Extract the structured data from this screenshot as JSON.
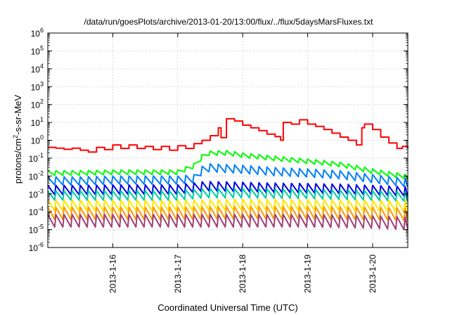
{
  "chart_data": {
    "type": "line",
    "title": "/data/run/goesPlots/archive/2013-01-20/13:00/flux/../flux/5daysMarsFluxes.txt",
    "xlabel": "Coordinated Universal Time (UTC)",
    "ylabel": {
      "base": "protons/cm",
      "sup": "2",
      "rest": "-s-sr-MeV"
    },
    "yscale": "log",
    "ylim": [
      1e-06,
      1000000.0
    ],
    "yticks": [
      {
        "value": 1e-06,
        "exp": "-6"
      },
      {
        "value": 1e-05,
        "exp": "-5"
      },
      {
        "value": 0.0001,
        "exp": "-4"
      },
      {
        "value": 0.001,
        "exp": "-3"
      },
      {
        "value": 0.01,
        "exp": "-2"
      },
      {
        "value": 0.1,
        "exp": "-1"
      },
      {
        "value": 1,
        "exp": "0"
      },
      {
        "value": 10,
        "exp": "1"
      },
      {
        "value": 100,
        "exp": "2"
      },
      {
        "value": 1000,
        "exp": "3"
      },
      {
        "value": 10000,
        "exp": "4"
      },
      {
        "value": 100000,
        "exp": "5"
      },
      {
        "value": 1000000,
        "exp": "6"
      }
    ],
    "ytick_base": "10",
    "xlim": [
      "2013-01-15 00:00",
      "2013-01-20 13:00"
    ],
    "xticks": [
      {
        "value": "2013-01-16 00:00",
        "label": "2013-1-16"
      },
      {
        "value": "2013-01-17 00:00",
        "label": "2013-1-17"
      },
      {
        "value": "2013-01-18 00:00",
        "label": "2013-1-18"
      },
      {
        "value": "2013-01-19 00:00",
        "label": "2013-1-19"
      },
      {
        "value": "2013-01-20 00:00",
        "label": "2013-1-20"
      }
    ],
    "grid": "dotted",
    "legend": "none",
    "series": [
      {
        "color": "#ff0000",
        "values": [
          [
            "2013-01-15 00:00",
            0.4
          ],
          [
            "2013-01-15 03:00",
            0.36
          ],
          [
            "2013-01-15 06:00",
            0.31
          ],
          [
            "2013-01-15 09:00",
            0.36
          ],
          [
            "2013-01-15 12:00",
            0.28
          ],
          [
            "2013-01-15 15:00",
            0.22
          ],
          [
            "2013-01-15 18:00",
            0.4
          ],
          [
            "2013-01-15 21:00",
            0.3
          ],
          [
            "2013-01-16 00:00",
            0.55
          ],
          [
            "2013-01-16 03:00",
            0.35
          ],
          [
            "2013-01-16 06:00",
            0.55
          ],
          [
            "2013-01-16 09:00",
            0.35
          ],
          [
            "2013-01-16 12:00",
            0.45
          ],
          [
            "2013-01-16 15:00",
            0.3
          ],
          [
            "2013-01-16 18:00",
            0.45
          ],
          [
            "2013-01-16 21:00",
            0.28
          ],
          [
            "2013-01-17 00:00",
            0.5
          ],
          [
            "2013-01-17 03:00",
            0.35
          ],
          [
            "2013-01-17 06:00",
            0.65
          ],
          [
            "2013-01-17 09:00",
            1.0
          ],
          [
            "2013-01-17 12:00",
            1.8
          ],
          [
            "2013-01-17 15:00",
            5.0
          ],
          [
            "2013-01-17 16:00",
            1.4
          ],
          [
            "2013-01-17 18:00",
            16.0
          ],
          [
            "2013-01-17 21:00",
            12.0
          ],
          [
            "2013-01-18 00:00",
            7.0
          ],
          [
            "2013-01-18 03:00",
            5.0
          ],
          [
            "2013-01-18 06:00",
            3.5
          ],
          [
            "2013-01-18 09:00",
            2.2
          ],
          [
            "2013-01-18 12:00",
            1.6
          ],
          [
            "2013-01-18 14:00",
            1.0
          ],
          [
            "2013-01-18 15:00",
            10.0
          ],
          [
            "2013-01-18 18:00",
            8.0
          ],
          [
            "2013-01-18 21:00",
            14.0
          ],
          [
            "2013-01-19 00:00",
            8.0
          ],
          [
            "2013-01-19 03:00",
            6.0
          ],
          [
            "2013-01-19 06:00",
            4.0
          ],
          [
            "2013-01-19 09:00",
            2.5
          ],
          [
            "2013-01-19 12:00",
            1.5
          ],
          [
            "2013-01-19 15:00",
            1.0
          ],
          [
            "2013-01-19 18:00",
            0.55
          ],
          [
            "2013-01-19 20:00",
            5.0
          ],
          [
            "2013-01-19 21:00",
            8.0
          ],
          [
            "2013-01-20 00:00",
            4.0
          ],
          [
            "2013-01-20 03:00",
            1.5
          ],
          [
            "2013-01-20 06:00",
            0.7
          ],
          [
            "2013-01-20 09:00",
            0.35
          ],
          [
            "2013-01-20 11:00",
            0.45
          ],
          [
            "2013-01-20 13:00",
            0.35
          ]
        ]
      },
      {
        "color": "#00ff00",
        "values": [
          [
            "2013-01-15 00:00",
            0.02
          ],
          [
            "2013-01-15 12:00",
            0.02
          ],
          [
            "2013-01-16 00:00",
            0.022
          ],
          [
            "2013-01-16 12:00",
            0.022
          ],
          [
            "2013-01-17 00:00",
            0.022
          ],
          [
            "2013-01-17 06:00",
            0.05
          ],
          [
            "2013-01-17 08:00",
            0.1
          ],
          [
            "2013-01-17 10:00",
            0.25
          ],
          [
            "2013-01-17 18:00",
            0.27
          ],
          [
            "2013-01-18 00:00",
            0.2
          ],
          [
            "2013-01-18 12:00",
            0.13
          ],
          [
            "2013-01-19 00:00",
            0.09
          ],
          [
            "2013-01-19 12:00",
            0.06
          ],
          [
            "2013-01-20 00:00",
            0.025
          ],
          [
            "2013-01-20 13:00",
            0.012
          ]
        ]
      },
      {
        "color": "#0080ff",
        "values": [
          [
            "2013-01-15 00:00",
            0.009
          ],
          [
            "2013-01-15 12:00",
            0.009
          ],
          [
            "2013-01-16 00:00",
            0.01
          ],
          [
            "2013-01-16 12:00",
            0.01
          ],
          [
            "2013-01-17 00:00",
            0.01
          ],
          [
            "2013-01-17 06:00",
            0.012
          ],
          [
            "2013-01-17 10:00",
            0.05
          ],
          [
            "2013-01-18 00:00",
            0.04
          ],
          [
            "2013-01-18 12:00",
            0.03
          ],
          [
            "2013-01-19 00:00",
            0.025
          ],
          [
            "2013-01-19 12:00",
            0.02
          ],
          [
            "2013-01-20 00:00",
            0.012
          ],
          [
            "2013-01-20 13:00",
            0.007
          ]
        ]
      },
      {
        "color": "#0000e6",
        "values": [
          [
            "2013-01-15 00:00",
            0.003
          ],
          [
            "2013-01-15 12:00",
            0.003
          ],
          [
            "2013-01-16 00:00",
            0.0032
          ],
          [
            "2013-01-16 12:00",
            0.0032
          ],
          [
            "2013-01-17 00:00",
            0.0032
          ],
          [
            "2013-01-17 10:00",
            0.005
          ],
          [
            "2013-01-18 00:00",
            0.0045
          ],
          [
            "2013-01-18 12:00",
            0.004
          ],
          [
            "2013-01-19 00:00",
            0.0038
          ],
          [
            "2013-01-19 12:00",
            0.0035
          ],
          [
            "2013-01-20 00:00",
            0.003
          ],
          [
            "2013-01-20 13:00",
            0.0025
          ]
        ]
      },
      {
        "color": "#00ccaa",
        "values": [
          [
            "2013-01-15 00:00",
            0.0015
          ],
          [
            "2013-01-16 00:00",
            0.0015
          ],
          [
            "2013-01-17 00:00",
            0.0015
          ],
          [
            "2013-01-17 10:00",
            0.002
          ],
          [
            "2013-01-18 00:00",
            0.002
          ],
          [
            "2013-01-19 00:00",
            0.0018
          ],
          [
            "2013-01-20 00:00",
            0.0015
          ],
          [
            "2013-01-20 13:00",
            0.0013
          ]
        ]
      },
      {
        "color": "#ffe600",
        "values": [
          [
            "2013-01-15 00:00",
            0.00045
          ],
          [
            "2013-01-16 00:00",
            0.00045
          ],
          [
            "2013-01-17 00:00",
            0.00045
          ],
          [
            "2013-01-18 00:00",
            0.0005
          ],
          [
            "2013-01-19 00:00",
            0.00048
          ],
          [
            "2013-01-20 00:00",
            0.00045
          ],
          [
            "2013-01-20 13:00",
            0.0004
          ]
        ]
      },
      {
        "color": "#ff9900",
        "values": [
          [
            "2013-01-15 00:00",
            0.00018
          ],
          [
            "2013-01-16 00:00",
            0.00018
          ],
          [
            "2013-01-17 00:00",
            0.00018
          ],
          [
            "2013-01-18 00:00",
            0.0002
          ],
          [
            "2013-01-19 00:00",
            0.00019
          ],
          [
            "2013-01-20 00:00",
            0.00018
          ],
          [
            "2013-01-20 13:00",
            0.00016
          ]
        ]
      },
      {
        "color": "#a0407a",
        "values": [
          [
            "2013-01-15 00:00",
            7e-05
          ],
          [
            "2013-01-16 00:00",
            7e-05
          ],
          [
            "2013-01-17 00:00",
            7e-05
          ],
          [
            "2013-01-18 00:00",
            7e-05
          ],
          [
            "2013-01-19 00:00",
            7e-05
          ],
          [
            "2013-01-20 00:00",
            6e-05
          ],
          [
            "2013-01-20 13:00",
            5e-05
          ]
        ]
      }
    ],
    "oscillating_series": [
      {
        "series_index": 1,
        "trough_ratio": 0.55,
        "period_hours": 3
      },
      {
        "series_index": 2,
        "trough_ratio": 0.35,
        "period_hours": 3
      },
      {
        "series_index": 3,
        "trough_ratio": 0.3,
        "period_hours": 3
      },
      {
        "series_index": 4,
        "trough_ratio": 0.3,
        "period_hours": 3
      },
      {
        "series_index": 5,
        "trough_ratio": 0.25,
        "period_hours": 3
      },
      {
        "series_index": 6,
        "trough_ratio": 0.2,
        "period_hours": 3
      },
      {
        "series_index": 7,
        "trough_ratio": 0.2,
        "period_hours": 3
      }
    ]
  }
}
